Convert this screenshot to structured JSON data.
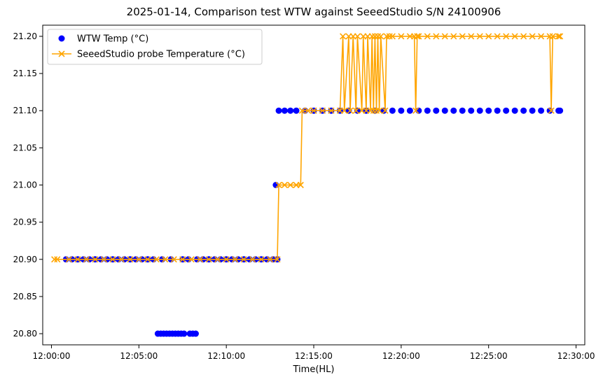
{
  "chart_data": {
    "type": "scatter",
    "title": "2025-01-14, Comparison test WTW against SeeedStudio S/N 24100906",
    "xlabel": "Time(HL)",
    "ylabel": "",
    "xlim": [
      "11:59:30",
      "12:30:30"
    ],
    "ylim": [
      20.785,
      21.215
    ],
    "x_ticks": [
      "12:00:00",
      "12:05:00",
      "12:10:00",
      "12:15:00",
      "12:20:00",
      "12:25:00",
      "12:30:00"
    ],
    "y_ticks": [
      "20.80",
      "20.85",
      "20.90",
      "20.95",
      "21.00",
      "21.05",
      "21.10",
      "21.15",
      "21.20"
    ],
    "grid": false,
    "legend_position": "top-left",
    "series": [
      {
        "name": "WTW Temp (°C)",
        "kind": "scatter",
        "marker": "o",
        "color": "#0000ff",
        "x": [
          "12:00:50",
          "12:01:10",
          "12:01:30",
          "12:01:50",
          "12:02:10",
          "12:02:30",
          "12:02:50",
          "12:03:10",
          "12:03:30",
          "12:03:50",
          "12:04:10",
          "12:04:30",
          "12:04:50",
          "12:05:10",
          "12:05:30",
          "12:05:50",
          "12:06:20",
          "12:06:50",
          "12:07:30",
          "12:07:50",
          "12:08:20",
          "12:08:40",
          "12:09:00",
          "12:09:20",
          "12:09:40",
          "12:10:00",
          "12:10:20",
          "12:10:40",
          "12:11:00",
          "12:11:20",
          "12:11:40",
          "12:12:00",
          "12:12:20",
          "12:12:40",
          "12:12:55",
          "12:06:05",
          "12:06:15",
          "12:06:25",
          "12:06:35",
          "12:06:45",
          "12:06:55",
          "12:07:05",
          "12:07:15",
          "12:07:25",
          "12:07:35",
          "12:07:55",
          "12:08:05",
          "12:08:15",
          "12:12:50",
          "12:13:00",
          "12:13:20",
          "12:13:40",
          "12:14:00",
          "12:14:30",
          "12:15:00",
          "12:15:30",
          "12:16:00",
          "12:16:30",
          "12:17:00",
          "12:17:30",
          "12:18:00",
          "12:18:30",
          "12:19:00",
          "12:19:30",
          "12:20:00",
          "12:20:30",
          "12:21:00",
          "12:21:30",
          "12:22:00",
          "12:22:30",
          "12:23:00",
          "12:23:30",
          "12:24:00",
          "12:24:30",
          "12:25:00",
          "12:25:30",
          "12:26:00",
          "12:26:30",
          "12:27:00",
          "12:27:30",
          "12:28:00",
          "12:28:30",
          "12:29:00",
          "12:29:05"
        ],
        "y": [
          20.9,
          20.9,
          20.9,
          20.9,
          20.9,
          20.9,
          20.9,
          20.9,
          20.9,
          20.9,
          20.9,
          20.9,
          20.9,
          20.9,
          20.9,
          20.9,
          20.9,
          20.9,
          20.9,
          20.9,
          20.9,
          20.9,
          20.9,
          20.9,
          20.9,
          20.9,
          20.9,
          20.9,
          20.9,
          20.9,
          20.9,
          20.9,
          20.9,
          20.9,
          20.9,
          20.8,
          20.8,
          20.8,
          20.8,
          20.8,
          20.8,
          20.8,
          20.8,
          20.8,
          20.8,
          20.8,
          20.8,
          20.8,
          21.0,
          21.1,
          21.1,
          21.1,
          21.1,
          21.1,
          21.1,
          21.1,
          21.1,
          21.1,
          21.1,
          21.1,
          21.1,
          21.1,
          21.1,
          21.1,
          21.1,
          21.1,
          21.1,
          21.1,
          21.1,
          21.1,
          21.1,
          21.1,
          21.1,
          21.1,
          21.1,
          21.1,
          21.1,
          21.1,
          21.1,
          21.1,
          21.1,
          21.1,
          21.1,
          21.1
        ]
      },
      {
        "name": "SeeedStudio probe Temperature (°C)",
        "kind": "line",
        "marker": "x",
        "color": "#ffa500",
        "x": [
          "12:00:10",
          "12:00:20",
          "12:01:00",
          "12:01:30",
          "12:02:00",
          "12:02:30",
          "12:03:00",
          "12:03:30",
          "12:04:00",
          "12:04:30",
          "12:05:00",
          "12:05:30",
          "12:06:00",
          "12:06:30",
          "12:07:00",
          "12:07:30",
          "12:08:00",
          "12:08:30",
          "12:09:00",
          "12:09:30",
          "12:10:00",
          "12:10:30",
          "12:11:00",
          "12:11:30",
          "12:12:00",
          "12:12:30",
          "12:12:55",
          "12:13:00",
          "12:13:20",
          "12:13:40",
          "12:14:00",
          "12:14:15",
          "12:14:20",
          "12:14:40",
          "12:15:00",
          "12:15:30",
          "12:16:00",
          "12:16:30",
          "12:16:40",
          "12:16:45",
          "12:17:00",
          "12:17:05",
          "12:17:15",
          "12:17:25",
          "12:17:30",
          "12:17:45",
          "12:17:50",
          "12:18:00",
          "12:18:05",
          "12:18:15",
          "12:18:20",
          "12:18:25",
          "12:18:30",
          "12:18:35",
          "12:18:40",
          "12:18:45",
          "12:18:50",
          "12:19:05",
          "12:19:10",
          "12:19:20",
          "12:19:30",
          "12:20:00",
          "12:20:30",
          "12:20:45",
          "12:20:50",
          "12:20:55",
          "12:21:00",
          "12:21:30",
          "12:22:00",
          "12:22:30",
          "12:23:00",
          "12:23:30",
          "12:24:00",
          "12:24:30",
          "12:25:00",
          "12:25:30",
          "12:26:00",
          "12:26:30",
          "12:27:00",
          "12:27:30",
          "12:28:00",
          "12:28:30",
          "12:28:35",
          "12:28:40",
          "12:29:00",
          "12:29:05"
        ],
        "y": [
          20.9,
          20.9,
          20.9,
          20.9,
          20.9,
          20.9,
          20.9,
          20.9,
          20.9,
          20.9,
          20.9,
          20.9,
          20.9,
          20.9,
          20.9,
          20.9,
          20.9,
          20.9,
          20.9,
          20.9,
          20.9,
          20.9,
          20.9,
          20.9,
          20.9,
          20.9,
          20.9,
          21.0,
          21.0,
          21.0,
          21.0,
          21.0,
          21.1,
          21.1,
          21.1,
          21.1,
          21.1,
          21.1,
          21.2,
          21.1,
          21.2,
          21.1,
          21.2,
          21.1,
          21.2,
          21.1,
          21.2,
          21.1,
          21.2,
          21.1,
          21.2,
          21.1,
          21.2,
          21.1,
          21.2,
          21.1,
          21.2,
          21.1,
          21.2,
          21.2,
          21.2,
          21.2,
          21.2,
          21.2,
          21.1,
          21.2,
          21.2,
          21.2,
          21.2,
          21.2,
          21.2,
          21.2,
          21.2,
          21.2,
          21.2,
          21.2,
          21.2,
          21.2,
          21.2,
          21.2,
          21.2,
          21.2,
          21.1,
          21.2,
          21.2,
          21.2
        ]
      }
    ]
  }
}
